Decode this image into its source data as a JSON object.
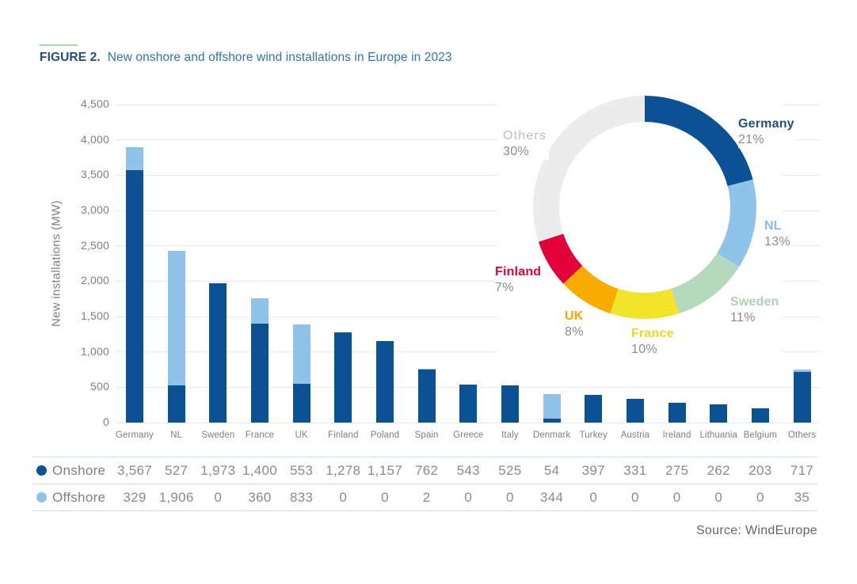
{
  "figure": {
    "label": "FIGURE 2.",
    "title": "New onshore and offshore wind installations in Europe in 2023"
  },
  "source": "Source: WindEurope",
  "chart_data": [
    {
      "type": "bar",
      "stacked": true,
      "title": "New onshore and offshore wind installations in Europe in 2023",
      "xlabel": "",
      "ylabel": "New installations (MW)",
      "ylim": [
        0,
        4500
      ],
      "ytick_step": 500,
      "grid": true,
      "legend_position": "table-left",
      "categories": [
        "Germany",
        "NL",
        "Sweden",
        "France",
        "UK",
        "Finland",
        "Poland",
        "Spain",
        "Greece",
        "Italy",
        "Denmark",
        "Turkey",
        "Austria",
        "Ireland",
        "Lithuania",
        "Belgium",
        "Others"
      ],
      "series": [
        {
          "name": "Onshore",
          "color": "#0B5294",
          "values": [
            3567,
            527,
            1973,
            1400,
            553,
            1278,
            1157,
            762,
            543,
            525,
            54,
            397,
            331,
            275,
            262,
            203,
            717
          ]
        },
        {
          "name": "Offshore",
          "color": "#8FC3EA",
          "values": [
            329,
            1906,
            0,
            360,
            833,
            0,
            0,
            2,
            0,
            0,
            344,
            0,
            0,
            0,
            0,
            0,
            35
          ]
        }
      ]
    },
    {
      "type": "pie",
      "donut": true,
      "slices": [
        {
          "label": "Germany",
          "pct": 21,
          "color": "#0B5294",
          "label_color": "#1B5089"
        },
        {
          "label": "NL",
          "pct": 13,
          "color": "#8FC3EA",
          "label_color": "#85BCE8"
        },
        {
          "label": "Sweden",
          "pct": 11,
          "color": "#B5D9BC",
          "label_color": "#A9D4B2"
        },
        {
          "label": "France",
          "pct": 10,
          "color": "#F2E428",
          "label_color": "#E9DB1F"
        },
        {
          "label": "UK",
          "pct": 8,
          "color": "#F8AB00",
          "label_color": "#F6A800"
        },
        {
          "label": "Finland",
          "pct": 7,
          "color": "#E40038",
          "label_color": "#E40038"
        },
        {
          "label": "Others",
          "pct": 30,
          "color": "#ECECEC",
          "label_color": "#BDBDBD"
        }
      ]
    }
  ]
}
